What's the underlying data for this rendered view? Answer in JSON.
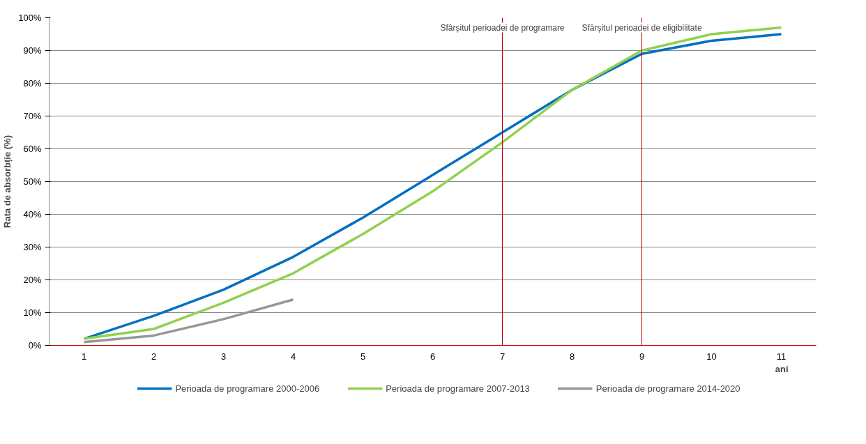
{
  "chart_data": {
    "type": "line",
    "xlabel": "ani",
    "ylabel": "Rata de absorbție (%)",
    "categories": [
      "1",
      "2",
      "3",
      "4",
      "5",
      "6",
      "7",
      "8",
      "9",
      "10",
      "11"
    ],
    "series": [
      {
        "name": "Perioada de programare 2000-2006",
        "color": "#0070c0",
        "values": [
          2,
          9,
          17,
          27,
          39,
          52,
          65,
          78,
          89,
          93,
          95
        ]
      },
      {
        "name": "Perioada de programare 2007-2013",
        "color": "#92d050",
        "values": [
          2,
          5,
          13,
          22,
          34,
          47,
          62,
          78,
          90,
          95,
          97
        ]
      },
      {
        "name": "Perioada de programare 2014-2020",
        "color": "#969696",
        "values": [
          1,
          3,
          8,
          14,
          null,
          null,
          null,
          null,
          null,
          null,
          null
        ]
      }
    ],
    "ylim": [
      0,
      100
    ],
    "yticks": [
      {
        "value": 0,
        "label": "0%"
      },
      {
        "value": 10,
        "label": "10%"
      },
      {
        "value": 20,
        "label": "20%"
      },
      {
        "value": 30,
        "label": "30%"
      },
      {
        "value": 40,
        "label": "40%"
      },
      {
        "value": 50,
        "label": "50%"
      },
      {
        "value": 60,
        "label": "60%"
      },
      {
        "value": 70,
        "label": "70%"
      },
      {
        "value": 80,
        "label": "80%"
      },
      {
        "value": 90,
        "label": "90%"
      },
      {
        "value": 100,
        "label": "100%"
      }
    ],
    "ref_lines": [
      {
        "axis": "x",
        "value": "7",
        "label": "Sfârșitul perioadei de programare",
        "color": "#c00000"
      },
      {
        "axis": "x",
        "value": "9",
        "label": "Sfârșitul perioadei de eligibilitate",
        "color": "#c00000"
      }
    ],
    "grid": "y",
    "legend": "bottom",
    "marker": "none",
    "line_style": "solid"
  }
}
